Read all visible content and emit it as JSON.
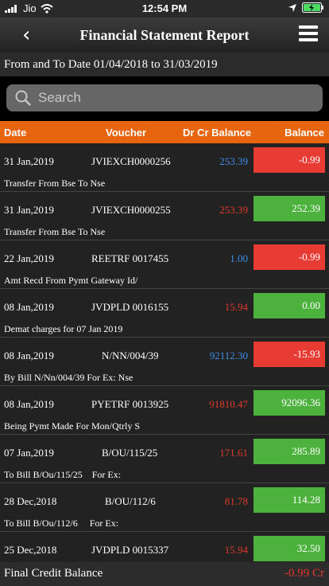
{
  "status_bar": {
    "carrier": "Jio",
    "time": "12:54 PM"
  },
  "header": {
    "title": "Financial Statement Report"
  },
  "date_range": "From and To Date 01/04/2018 to 31/03/2019",
  "search": {
    "placeholder": "Search"
  },
  "table": {
    "columns": [
      "Date",
      "Voucher",
      "Dr Cr Balance",
      "Balance"
    ],
    "rows": [
      {
        "date": "31 Jan,2019",
        "voucher": "JVIEXCH0000256",
        "drcr": "253.39",
        "drcr_color": "blue",
        "balance": "-0.99",
        "balance_status": "negative",
        "narration": "Transfer From  Bse To Nse"
      },
      {
        "date": "31 Jan,2019",
        "voucher": "JVIEXCH0000255",
        "drcr": "253.39",
        "drcr_color": "red",
        "balance": "252.39",
        "balance_status": "positive",
        "narration": "Transfer From  Bse To Nse"
      },
      {
        "date": "22 Jan,2019",
        "voucher": "REETRF 0017455",
        "drcr": "1.00",
        "drcr_color": "blue",
        "balance": "-0.99",
        "balance_status": "negative",
        "narration": "Amt Recd From  Pymt Gateway Id/"
      },
      {
        "date": "08 Jan,2019",
        "voucher": "JVDPLD 0016155",
        "drcr": "15.94",
        "drcr_color": "red",
        "balance": "0.00",
        "balance_status": "positive",
        "narration": "Demat charges for 07 Jan 2019"
      },
      {
        "date": "08 Jan,2019",
        "voucher": "N/NN/004/39",
        "drcr": "92112.30",
        "drcr_color": "blue",
        "balance": "-15.93",
        "balance_status": "negative",
        "narration": "By Bill N/Nn/004/39 For Ex: Nse"
      },
      {
        "date": "08 Jan,2019",
        "voucher": "PYETRF 0013925",
        "drcr": "91810.47",
        "drcr_color": "red",
        "balance": "92096.36",
        "balance_status": "positive",
        "narration": "Being Pymt Made For Mon/Qtrly S"
      },
      {
        "date": "07 Jan,2019",
        "voucher": "B/OU/115/25",
        "drcr": "171.61",
        "drcr_color": "red",
        "balance": "285.89",
        "balance_status": "positive",
        "narration": "To Bill B/Ou/115/25    For Ex:"
      },
      {
        "date": "28 Dec,2018",
        "voucher": "B/OU/112/6",
        "drcr": "81.78",
        "drcr_color": "red",
        "balance": "114.28",
        "balance_status": "positive",
        "narration": "To Bill B/Ou/112/6     For Ex:"
      },
      {
        "date": "25 Dec,2018",
        "voucher": "JVDPLD 0015337",
        "drcr": "15.94",
        "drcr_color": "red",
        "balance": "32.50",
        "balance_status": "positive",
        "narration": ""
      }
    ]
  },
  "footer": {
    "label": "Final Credit Balance",
    "value": "-0.99 Cr"
  },
  "colors": {
    "accent_orange": "#e8650f",
    "negative": "#e83b33",
    "positive": "#4db13e",
    "debit_blue": "#3f8fe8",
    "credit_red": "#e03a2c"
  }
}
